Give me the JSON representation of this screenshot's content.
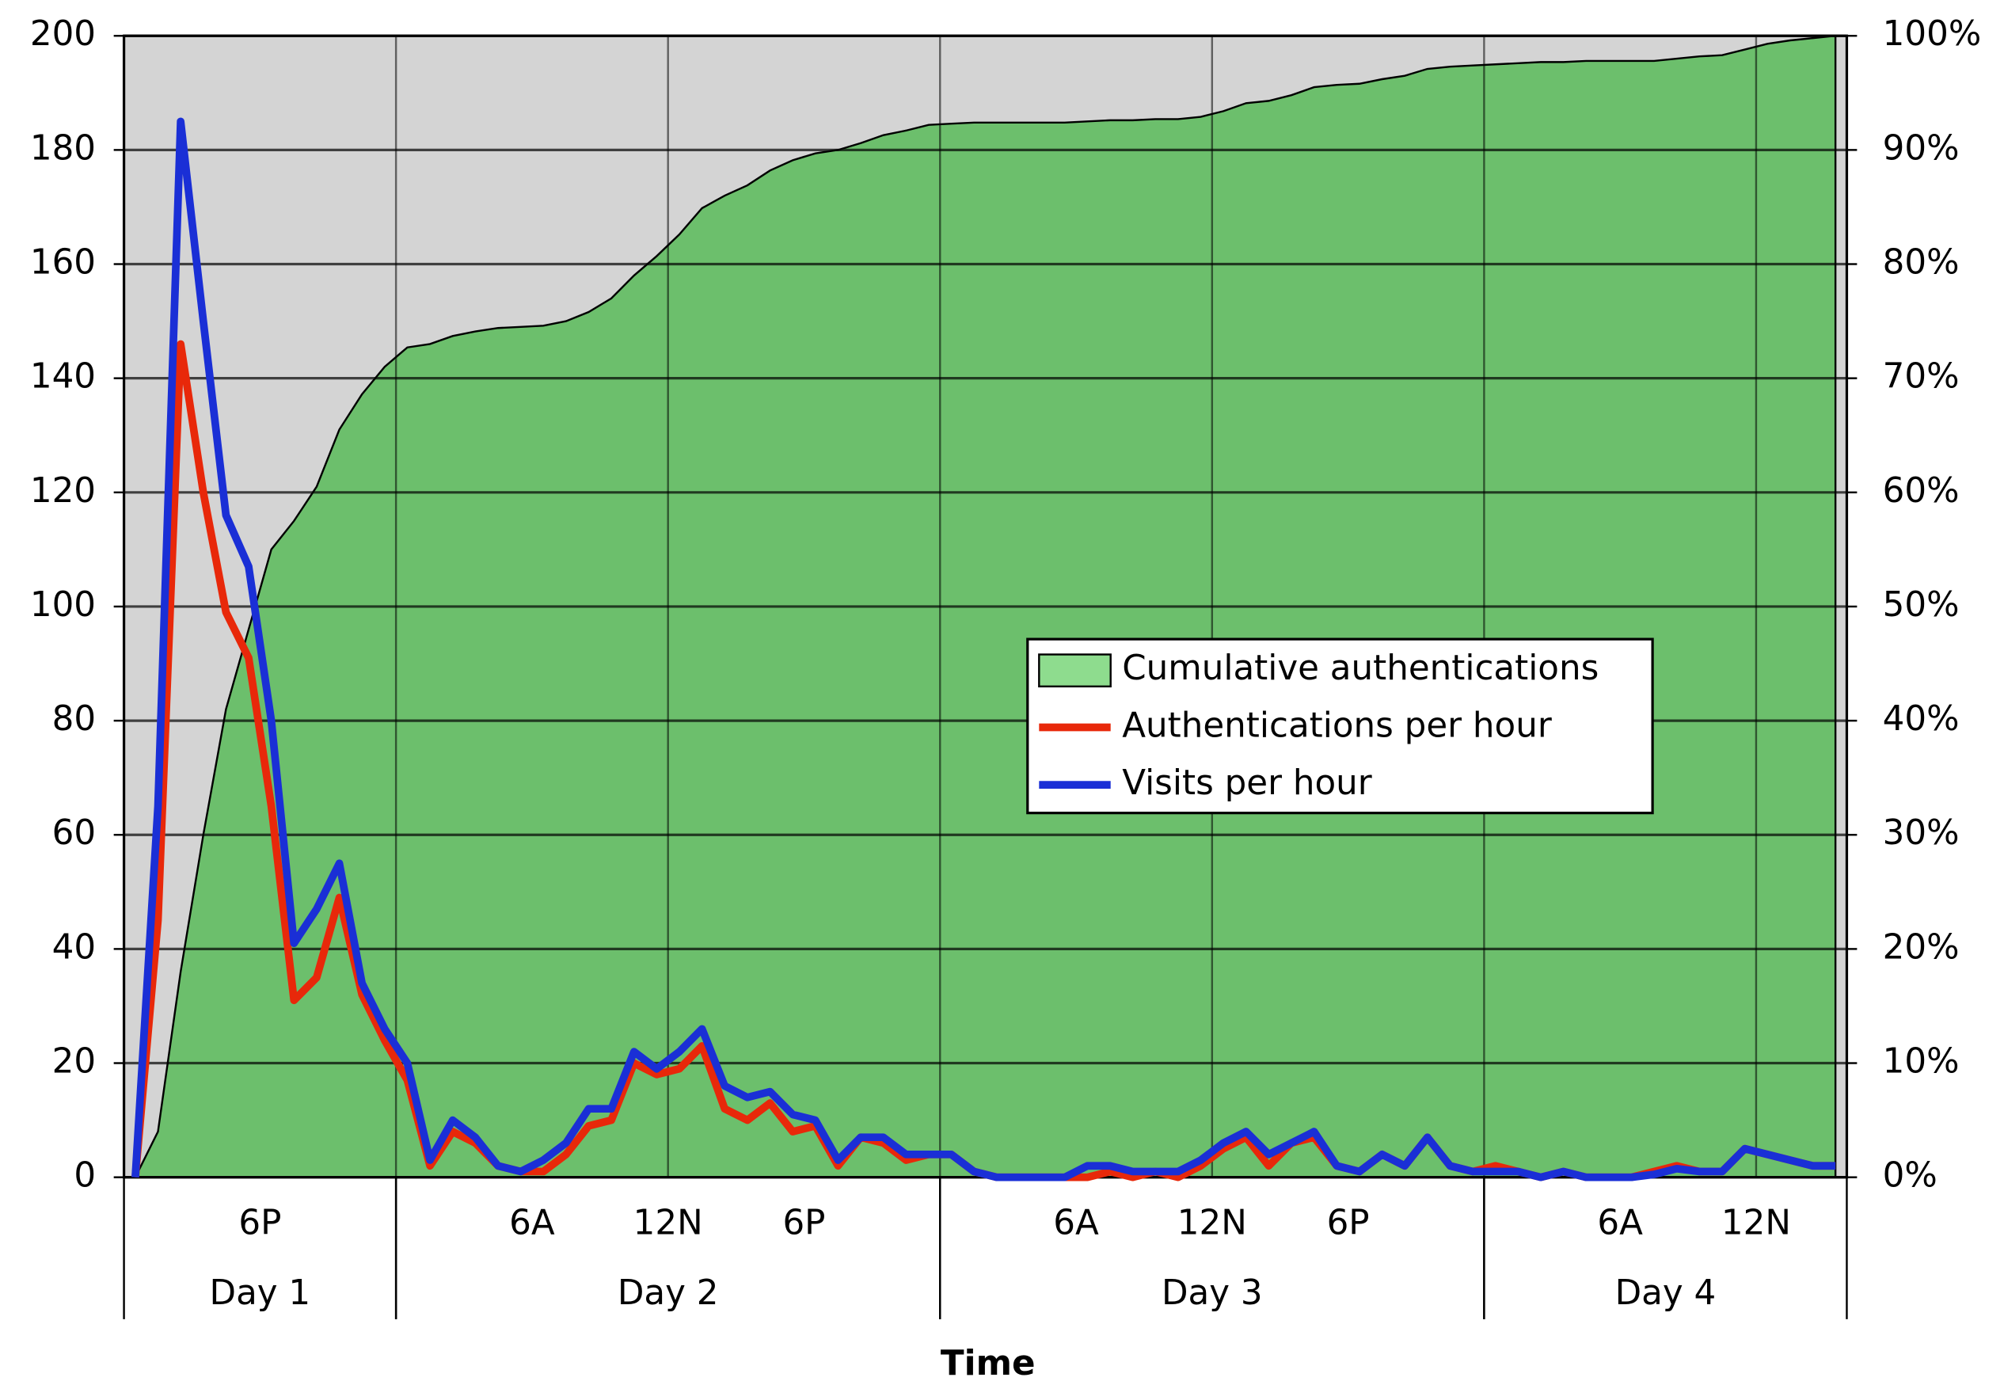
{
  "chart_data": {
    "type": "line",
    "xlabel": "Time",
    "xlim": [
      0,
      76
    ],
    "xticks": [
      {
        "value": 6,
        "label": "6P"
      },
      {
        "value": 18,
        "label": "6A"
      },
      {
        "value": 24,
        "label": "12N"
      },
      {
        "value": 30,
        "label": "6P"
      },
      {
        "value": 42,
        "label": "6A"
      },
      {
        "value": 48,
        "label": "12N"
      },
      {
        "value": 54,
        "label": "6P"
      },
      {
        "value": 66,
        "label": "6A"
      },
      {
        "value": 72,
        "label": "12N"
      }
    ],
    "xgrid": [
      12,
      24,
      36,
      48,
      60,
      72
    ],
    "day_groups": [
      {
        "label": "Day 1",
        "start": 0,
        "end": 12
      },
      {
        "label": "Day 2",
        "start": 12,
        "end": 36
      },
      {
        "label": "Day 3",
        "start": 36,
        "end": 60
      },
      {
        "label": "Day 4",
        "start": 60,
        "end": 76
      }
    ],
    "ylim": [
      0,
      200
    ],
    "yticks": [
      0,
      20,
      40,
      60,
      80,
      100,
      120,
      140,
      160,
      180,
      200
    ],
    "y2lim": [
      0,
      100
    ],
    "y2ticks": [
      {
        "value": 0,
        "label": "0%"
      },
      {
        "value": 10,
        "label": "10%"
      },
      {
        "value": 20,
        "label": "20%"
      },
      {
        "value": 30,
        "label": "30%"
      },
      {
        "value": 40,
        "label": "40%"
      },
      {
        "value": 50,
        "label": "50%"
      },
      {
        "value": 60,
        "label": "60%"
      },
      {
        "value": 70,
        "label": "70%"
      },
      {
        "value": 80,
        "label": "80%"
      },
      {
        "value": 90,
        "label": "90%"
      },
      {
        "value": 100,
        "label": "100%"
      }
    ],
    "grid": true,
    "legend": "center-right",
    "background": "#d4d4d4",
    "x": [
      0.5,
      1.5,
      2.5,
      3.5,
      4.5,
      5.5,
      6.5,
      7.5,
      8.5,
      9.5,
      10.5,
      11.5,
      12.5,
      13.5,
      14.5,
      15.5,
      16.5,
      17.5,
      18.5,
      19.5,
      20.5,
      21.5,
      22.5,
      23.5,
      24.5,
      25.5,
      26.5,
      27.5,
      28.5,
      29.5,
      30.5,
      31.5,
      32.5,
      33.5,
      34.5,
      35.5,
      36.5,
      37.5,
      38.5,
      39.5,
      40.5,
      41.5,
      42.5,
      43.5,
      44.5,
      45.5,
      46.5,
      47.5,
      48.5,
      49.5,
      50.5,
      51.5,
      52.5,
      53.5,
      54.5,
      55.5,
      56.5,
      57.5,
      58.5,
      59.5,
      60.5,
      61.5,
      62.5,
      63.5,
      64.5,
      65.5,
      66.5,
      67.5,
      68.5,
      69.5,
      70.5,
      71.5,
      72.5,
      73.5,
      74.5,
      75.5
    ],
    "series": [
      {
        "name": "Cumulative authentications",
        "type": "area",
        "axis": "y2",
        "color": "#6cbf6c",
        "legend_color": "#8edc8e",
        "values": [
          0,
          4,
          18,
          30,
          41,
          48,
          55,
          57.5,
          60.5,
          65.5,
          68.6,
          71,
          72.7,
          73,
          73.7,
          74.1,
          74.4,
          74.5,
          74.6,
          75,
          75.8,
          77,
          79,
          80.7,
          82.6,
          84.9,
          86,
          86.9,
          88.2,
          89.1,
          89.7,
          90,
          90.6,
          91.3,
          91.7,
          92.2,
          92.3,
          92.4,
          92.4,
          92.4,
          92.4,
          92.4,
          92.5,
          92.6,
          92.6,
          92.7,
          92.7,
          92.9,
          93.4,
          94.1,
          94.3,
          94.8,
          95.5,
          95.7,
          95.8,
          96.2,
          96.5,
          97.1,
          97.3,
          97.4,
          97.5,
          97.6,
          97.7,
          97.7,
          97.8,
          97.8,
          97.8,
          97.8,
          98,
          98.2,
          98.3,
          98.8,
          99.3,
          99.6,
          99.8,
          100
        ]
      },
      {
        "name": "Authentications per hour",
        "type": "line",
        "color": "#e8280a",
        "values": [
          0,
          45,
          146,
          120,
          99,
          91,
          65,
          31,
          35,
          49,
          32,
          24,
          17,
          2,
          8,
          6,
          2,
          1,
          1,
          4,
          9,
          10,
          20,
          18,
          19,
          23,
          12,
          10,
          13,
          8,
          9,
          2,
          7,
          6,
          3,
          4,
          4,
          1,
          0,
          0,
          0,
          0,
          0,
          1,
          0,
          1,
          0,
          2,
          5,
          7,
          2,
          6,
          7,
          2,
          1,
          4,
          2,
          7,
          2,
          1,
          2,
          1,
          0,
          1,
          0,
          0,
          0,
          1,
          2,
          1,
          1,
          5,
          4,
          3,
          2,
          2
        ]
      },
      {
        "name": "Visits per hour",
        "type": "line",
        "color": "#1a2fd6",
        "values": [
          0,
          65,
          185,
          150,
          116,
          107,
          80,
          41,
          47,
          55,
          34,
          26,
          20,
          3,
          10,
          7,
          2,
          1,
          3,
          6,
          12,
          12,
          22,
          19,
          22,
          26,
          16,
          14,
          15,
          11,
          10,
          3,
          7,
          7,
          4,
          4,
          4,
          1,
          0,
          0,
          0,
          0,
          2,
          2,
          1,
          1,
          1,
          3,
          6,
          8,
          4,
          6,
          8,
          2,
          1,
          4,
          2,
          7,
          2,
          1,
          1,
          1,
          0,
          1,
          0,
          0,
          0,
          0.5,
          1.5,
          1,
          1,
          5,
          4,
          3,
          2,
          2
        ]
      }
    ]
  }
}
